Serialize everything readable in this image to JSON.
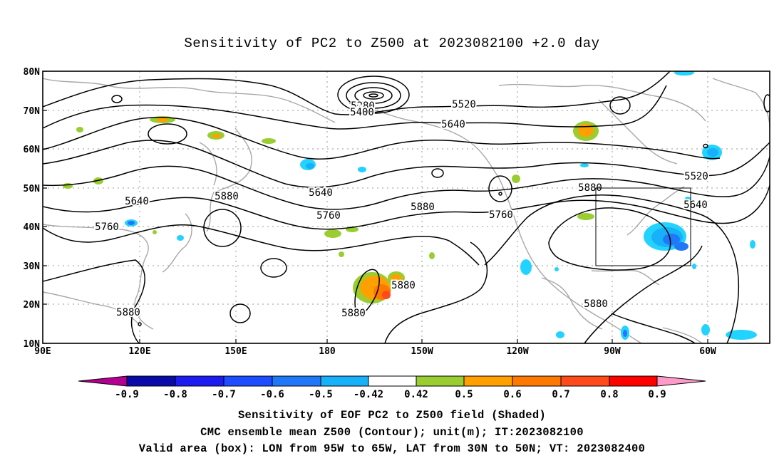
{
  "title": "Sensitivity of PC2 to Z500 at 2023082100 +2.0 day",
  "lat_labels": [
    "80N",
    "70N",
    "60N",
    "50N",
    "40N",
    "30N",
    "20N",
    "10N"
  ],
  "lon_labels": [
    "90E",
    "120E",
    "150E",
    "180",
    "150W",
    "120W",
    "90W",
    "60W"
  ],
  "contour_labels": [
    "5280",
    "5400",
    "5520",
    "5640",
    "5520",
    "5640",
    "5880",
    "5640",
    "5760",
    "5880",
    "5760",
    "5880",
    "5640",
    "5760",
    "5880",
    "5880",
    "5880",
    "5880"
  ],
  "colorbar": {
    "ticks": [
      "-0.9",
      "-0.8",
      "-0.7",
      "-0.6",
      "-0.5",
      "-0.42",
      "0.42",
      "0.5",
      "0.6",
      "0.7",
      "0.8",
      "0.9"
    ],
    "colors": [
      "#b40090",
      "#0a0aa8",
      "#1c1cf0",
      "#1e4cff",
      "#2078f8",
      "#18b0f8",
      "#22d2ff",
      "#ffffff",
      "#9acd32",
      "#ffa000",
      "#ff7800",
      "#ff4a1c",
      "#ff0000",
      "#ff9bc8"
    ]
  },
  "valid_box": {
    "lon_west": "95W",
    "lon_east": "65W",
    "lat_south": "30N",
    "lat_north": "50N"
  },
  "captions": [
    "Sensitivity of EOF PC2 to Z500 field (Shaded)",
    "CMC ensemble mean Z500 (Contour); unit(m); IT:2023082100",
    "Valid area (box): LON from 95W to 65W, LAT from 30N to 50N; VT: 2023082400"
  ]
}
